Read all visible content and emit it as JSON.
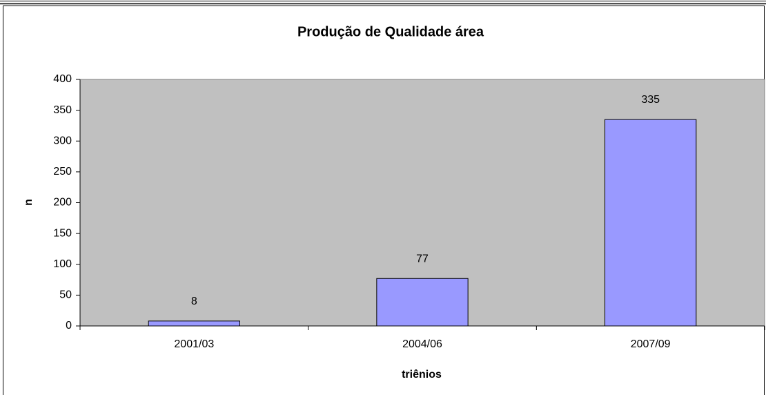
{
  "chart_data": {
    "type": "bar",
    "title": "Produção de Qualidade área",
    "x_label": "triênios",
    "y_label": "n",
    "categories": [
      "2001/03",
      "2004/06",
      "2007/09"
    ],
    "values": [
      8,
      77,
      335
    ],
    "color": "#9999ff",
    "plot_background": "#c0c0c0",
    "ylim": [
      0,
      400
    ],
    "yticks": [
      0,
      50,
      100,
      150,
      200,
      250,
      300,
      350,
      400
    ],
    "grid": false
  }
}
